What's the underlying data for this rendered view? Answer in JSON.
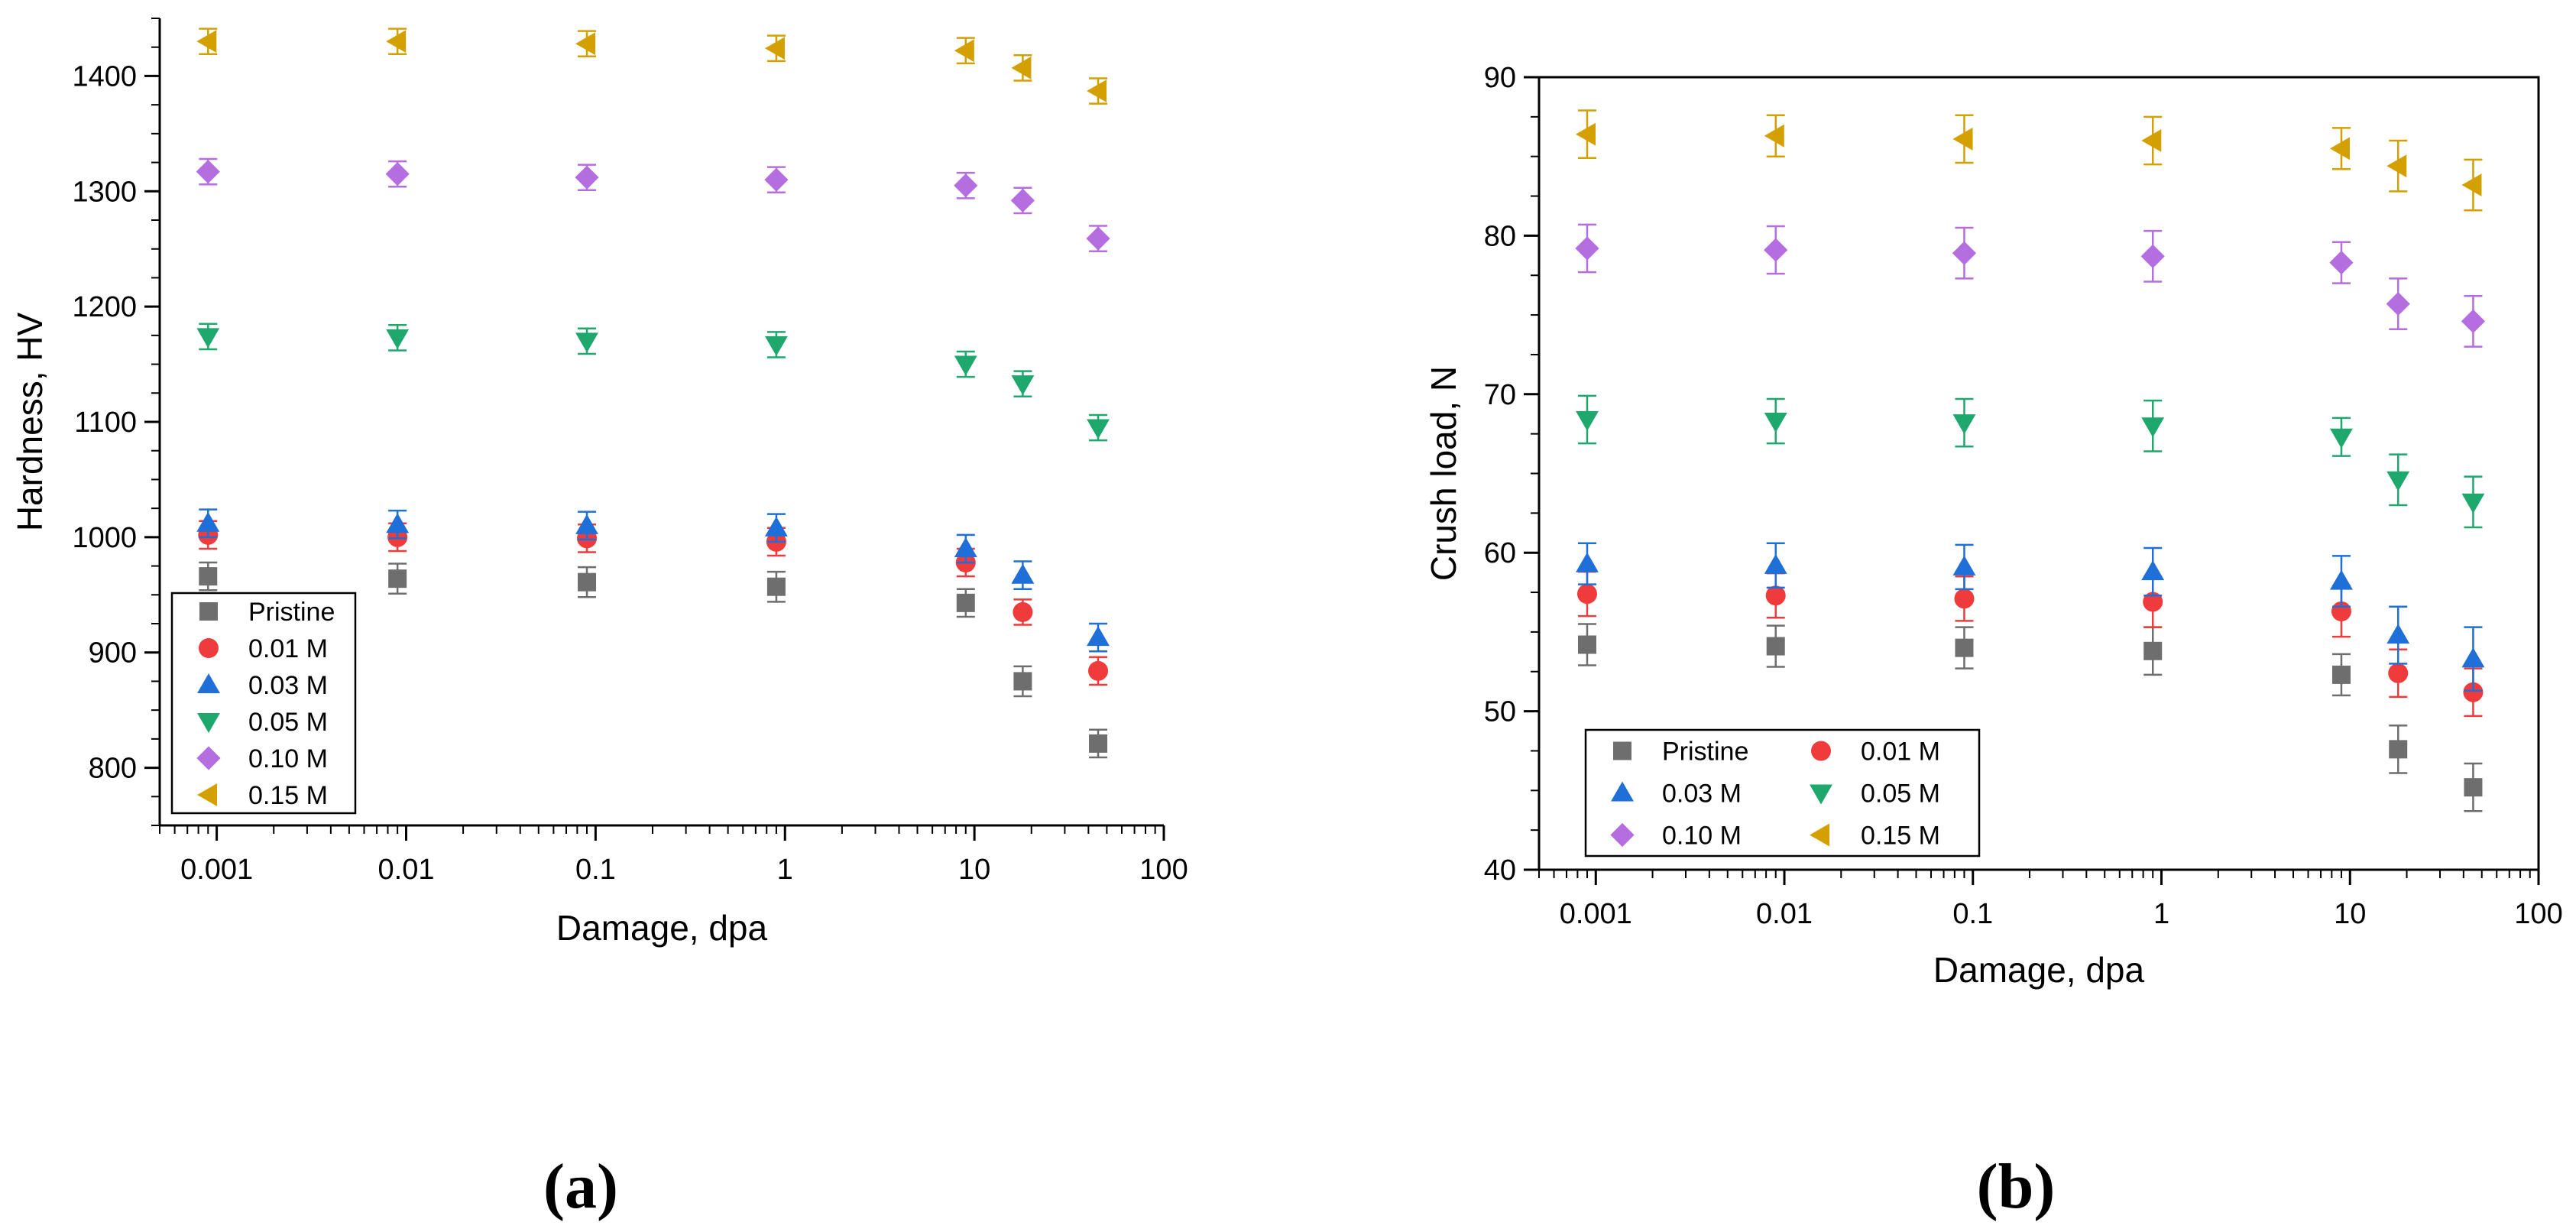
{
  "colors": {
    "Pristine": "#6e6e6e",
    "0.01 M": "#ef3b3b",
    "0.03 M": "#1f6fd8",
    "0.05 M": "#1ea86e",
    "0.10 M": "#b56ee0",
    "0.15 M": "#d4a000"
  },
  "chart_data": [
    {
      "type": "scatter",
      "panel_label": "(a)",
      "xlabel": "Damage, dpa",
      "ylabel": "Hardness, HV",
      "xscale": "log",
      "xlim": [
        0.0005,
        100
      ],
      "ylim": [
        750,
        1450
      ],
      "xticks": [
        0.001,
        0.01,
        0.1,
        1,
        10,
        100
      ],
      "xtick_labels": [
        "0.001",
        "0.01",
        "0.1",
        "1",
        "10",
        "100"
      ],
      "yticks": [
        800,
        900,
        1000,
        1100,
        1200,
        1300,
        1400
      ],
      "ytick_labels": [
        "800",
        "900",
        "1000",
        "1100",
        "1200",
        "1300",
        "1400"
      ],
      "legend_position": "bottom-left",
      "legend_columns": 1,
      "x": [
        0.0009,
        0.009,
        0.09,
        0.9,
        9,
        18,
        45
      ],
      "series": [
        {
          "name": "Pristine",
          "marker": "square",
          "values": [
            966,
            964,
            961,
            957,
            943,
            875,
            821
          ],
          "errors": [
            12,
            13,
            13,
            13,
            12,
            13,
            12
          ]
        },
        {
          "name": "0.01 M",
          "marker": "circle",
          "values": [
            1002,
            1000,
            999,
            996,
            978,
            935,
            884
          ],
          "errors": [
            12,
            12,
            12,
            12,
            12,
            11,
            12
          ]
        },
        {
          "name": "0.03 M",
          "marker": "triangle-up",
          "values": [
            1012,
            1011,
            1010,
            1008,
            990,
            967,
            913
          ],
          "errors": [
            12,
            12,
            12,
            12,
            12,
            12,
            12
          ]
        },
        {
          "name": "0.05 M",
          "marker": "triangle-down",
          "values": [
            1174,
            1173,
            1170,
            1167,
            1150,
            1133,
            1095
          ],
          "errors": [
            11,
            11,
            11,
            11,
            11,
            11,
            11
          ]
        },
        {
          "name": "0.10 M",
          "marker": "diamond",
          "values": [
            1317,
            1315,
            1312,
            1310,
            1305,
            1292,
            1259
          ],
          "errors": [
            11,
            11,
            11,
            11,
            11,
            11,
            11
          ]
        },
        {
          "name": "0.15 M",
          "marker": "triangle-left",
          "values": [
            1430,
            1430,
            1428,
            1424,
            1422,
            1407,
            1387
          ],
          "errors": [
            11,
            11,
            11,
            11,
            11,
            11,
            11
          ]
        }
      ]
    },
    {
      "type": "scatter",
      "panel_label": "(b)",
      "xlabel": "Damage, dpa",
      "ylabel": "Crush load, N",
      "xscale": "log",
      "xlim": [
        0.0005,
        100
      ],
      "ylim": [
        40,
        90
      ],
      "xticks": [
        0.001,
        0.01,
        0.1,
        1,
        10,
        100
      ],
      "xtick_labels": [
        "0.001",
        "0.01",
        "0.1",
        "1",
        "10",
        "100"
      ],
      "yticks": [
        40,
        50,
        60,
        70,
        80,
        90
      ],
      "ytick_labels": [
        "40",
        "50",
        "60",
        "70",
        "80",
        "90"
      ],
      "legend_position": "bottom-left",
      "legend_columns": 2,
      "x": [
        0.0009,
        0.009,
        0.09,
        0.9,
        9,
        18,
        45
      ],
      "series": [
        {
          "name": "Pristine",
          "marker": "square",
          "values": [
            54.2,
            54.1,
            54.0,
            53.8,
            52.3,
            47.6,
            45.2
          ],
          "errors": [
            1.3,
            1.3,
            1.3,
            1.5,
            1.3,
            1.5,
            1.5
          ]
        },
        {
          "name": "0.01 M",
          "marker": "circle",
          "values": [
            57.4,
            57.3,
            57.1,
            56.9,
            56.3,
            52.4,
            51.2
          ],
          "errors": [
            1.4,
            1.4,
            1.4,
            1.6,
            1.6,
            1.5,
            1.5
          ]
        },
        {
          "name": "0.03 M",
          "marker": "triangle-up",
          "values": [
            59.3,
            59.2,
            59.1,
            58.8,
            58.2,
            54.8,
            53.3
          ],
          "errors": [
            1.3,
            1.4,
            1.4,
            1.5,
            1.6,
            1.8,
            2.0
          ]
        },
        {
          "name": "0.05 M",
          "marker": "triangle-down",
          "values": [
            68.4,
            68.3,
            68.2,
            68.0,
            67.3,
            64.6,
            63.2
          ],
          "errors": [
            1.5,
            1.4,
            1.5,
            1.6,
            1.2,
            1.6,
            1.6
          ]
        },
        {
          "name": "0.10 M",
          "marker": "diamond",
          "values": [
            79.2,
            79.1,
            78.9,
            78.7,
            78.3,
            75.7,
            74.6
          ],
          "errors": [
            1.5,
            1.5,
            1.6,
            1.6,
            1.3,
            1.6,
            1.6
          ]
        },
        {
          "name": "0.15 M",
          "marker": "triangle-left",
          "values": [
            86.4,
            86.3,
            86.1,
            86.0,
            85.5,
            84.4,
            83.2
          ],
          "errors": [
            1.5,
            1.3,
            1.5,
            1.5,
            1.3,
            1.6,
            1.6
          ]
        }
      ]
    }
  ]
}
